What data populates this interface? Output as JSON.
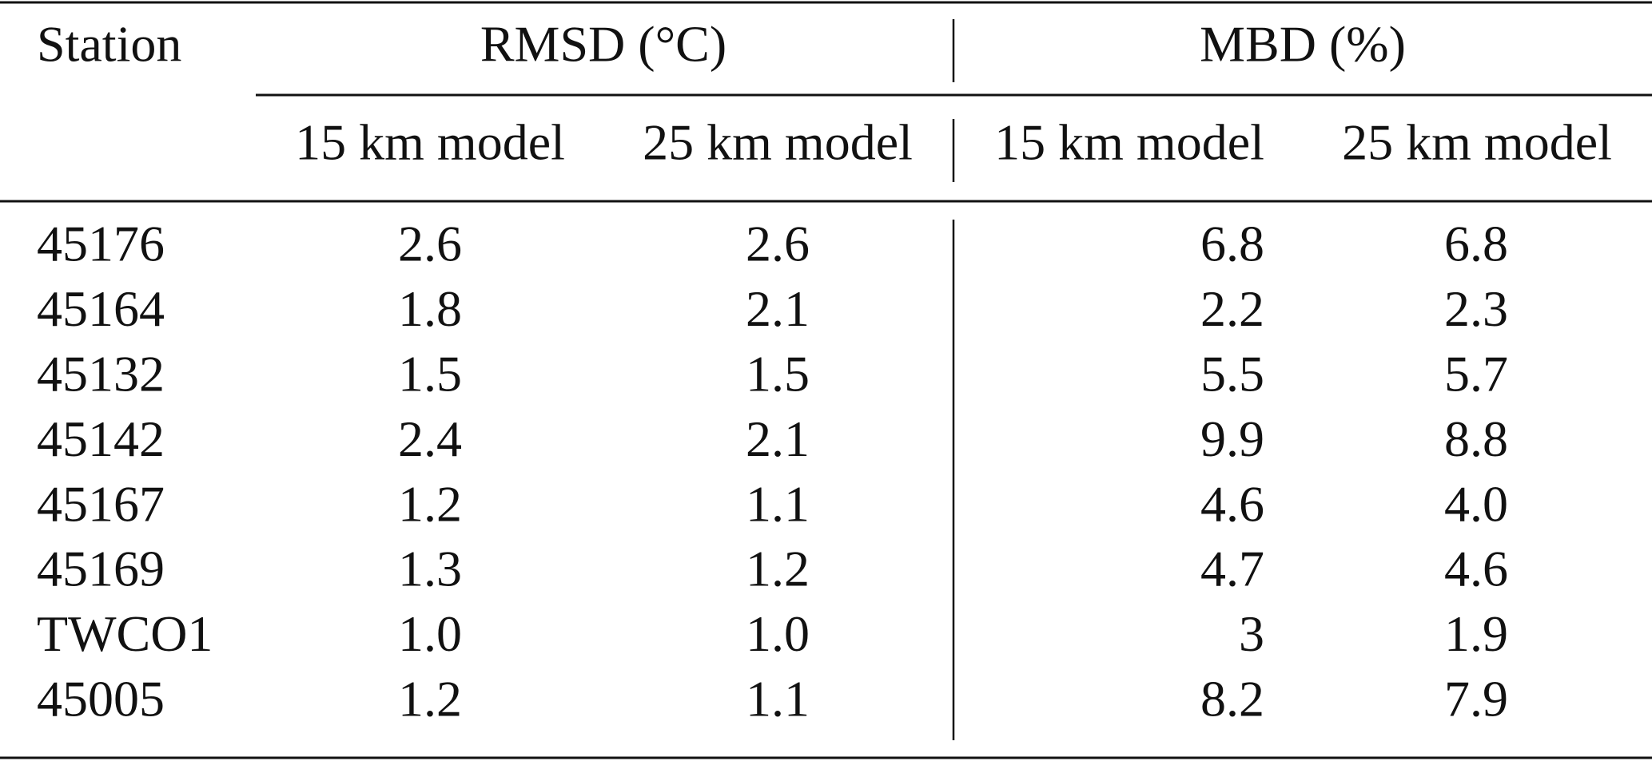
{
  "table": {
    "header": {
      "station": "Station",
      "groups": [
        "RMSD (°C)",
        "MBD (%)"
      ],
      "columns": [
        "15 km model",
        "25 km model",
        "15 km model",
        "25 km model"
      ]
    },
    "rows": [
      [
        "45176",
        "2.6",
        "2.6",
        "6.8",
        "6.8"
      ],
      [
        "45164",
        "1.8",
        "2.1",
        "2.2",
        "2.3"
      ],
      [
        "45132",
        "1.5",
        "1.5",
        "5.5",
        "5.7"
      ],
      [
        "45142",
        "2.4",
        "2.1",
        "9.9",
        "8.8"
      ],
      [
        "45167",
        "1.2",
        "1.1",
        "4.6",
        "4.0"
      ],
      [
        "45169",
        "1.3",
        "1.2",
        "4.7",
        "4.6"
      ],
      [
        "TWCO1",
        "1.0",
        "1.0",
        "3",
        "1.9"
      ],
      [
        "45005",
        "1.2",
        "1.1",
        "8.2",
        "7.9"
      ]
    ]
  }
}
